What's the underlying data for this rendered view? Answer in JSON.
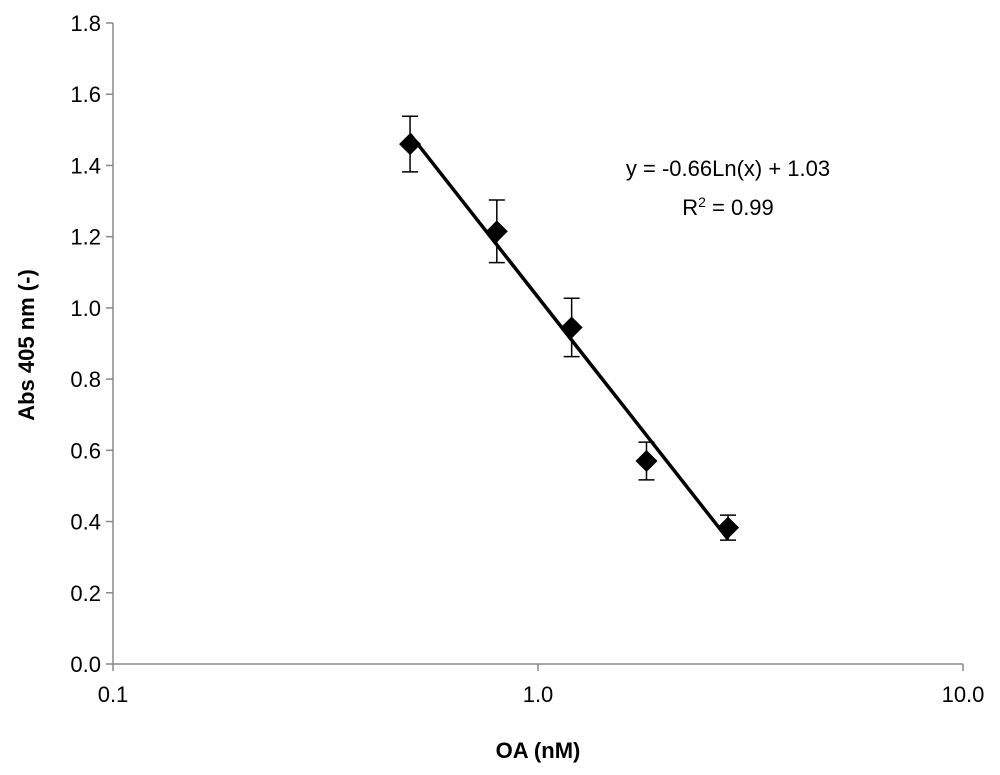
{
  "chart_data": {
    "type": "scatter",
    "title": "",
    "xlabel": "OA (nM)",
    "ylabel": "Abs 405 nm (-)",
    "xscale": "log",
    "xlim": [
      0.1,
      10.0
    ],
    "ylim": [
      0.0,
      1.8
    ],
    "xticks": [
      0.1,
      1.0,
      10.0
    ],
    "xtick_labels": [
      "0.1",
      "1.0",
      "10.0"
    ],
    "yticks": [
      0.0,
      0.2,
      0.4,
      0.6,
      0.8,
      1.0,
      1.2,
      1.4,
      1.6,
      1.8
    ],
    "ytick_labels": [
      "0.0",
      "0.2",
      "0.4",
      "0.6",
      "0.8",
      "1.0",
      "1.2",
      "1.4",
      "1.6",
      "1.8"
    ],
    "grid": false,
    "legend": "none",
    "marker": "diamond",
    "marker_color": "#000000",
    "series": [
      {
        "x": [
          0.5,
          0.8,
          1.2,
          1.8,
          2.8
        ],
        "y": [
          1.46,
          1.215,
          0.945,
          0.57,
          0.383
        ],
        "error": [
          0.078,
          0.088,
          0.082,
          0.053,
          0.035
        ]
      }
    ],
    "trendline": {
      "kind": "logarithmic",
      "a": -0.66,
      "b": 1.03,
      "x_range": [
        0.5,
        2.8
      ],
      "color": "#000000"
    },
    "annotations": {
      "equation": "y = -0.66Ln(x) + 1.03",
      "r2_prefix": "R",
      "r2_sup": "2",
      "r2_suffix": " = 0.99"
    }
  }
}
